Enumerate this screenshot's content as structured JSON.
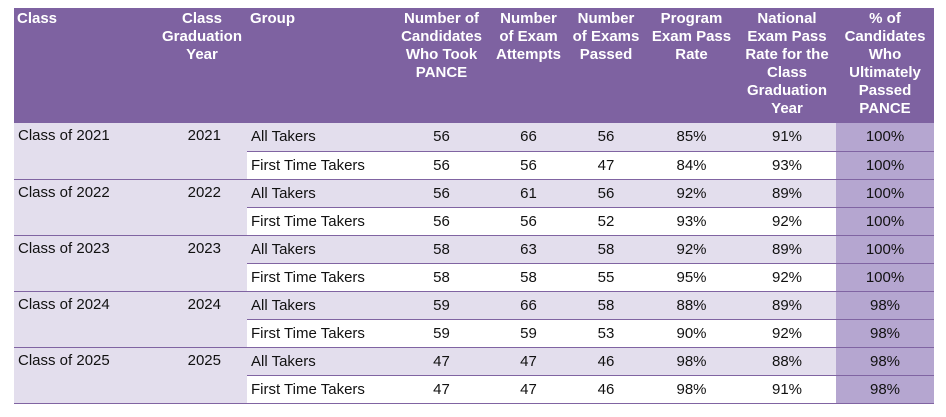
{
  "table": {
    "headers": [
      "Class",
      "Class Graduation Year",
      "Group",
      "Number of Candidates Who Took PANCE",
      "Number of Exam Attempts",
      "Number of Exams Passed",
      "Program Exam Pass Rate",
      "National Exam Pass Rate for the Class Graduation Year",
      "% of Candidates Who Ultimately Passed PANCE"
    ],
    "groups": [
      {
        "class": "Class of 2021",
        "year": "2021",
        "rows": [
          [
            "All Takers",
            "56",
            "66",
            "56",
            "85%",
            "91%",
            "100%"
          ],
          [
            "First Time Takers",
            "56",
            "56",
            "47",
            "84%",
            "93%",
            "100%"
          ]
        ]
      },
      {
        "class": "Class of 2022",
        "year": "2022",
        "rows": [
          [
            "All Takers",
            "56",
            "61",
            "56",
            "92%",
            "89%",
            "100%"
          ],
          [
            "First Time Takers",
            "56",
            "56",
            "52",
            "93%",
            "92%",
            "100%"
          ]
        ]
      },
      {
        "class": "Class of 2023",
        "year": "2023",
        "rows": [
          [
            "All Takers",
            "58",
            "63",
            "58",
            "92%",
            "89%",
            "100%"
          ],
          [
            "First Time Takers",
            "58",
            "58",
            "55",
            "95%",
            "92%",
            "100%"
          ]
        ]
      },
      {
        "class": "Class of 2024",
        "year": "2024",
        "rows": [
          [
            "All Takers",
            "59",
            "66",
            "58",
            "88%",
            "89%",
            "98%"
          ],
          [
            "First Time Takers",
            "59",
            "59",
            "53",
            "90%",
            "92%",
            "98%"
          ]
        ]
      },
      {
        "class": "Class of 2025",
        "year": "2025",
        "rows": [
          [
            "All Takers",
            "47",
            "47",
            "46",
            "98%",
            "88%",
            "98%"
          ],
          [
            "First Time Takers",
            "47",
            "47",
            "46",
            "98%",
            "91%",
            "98%"
          ]
        ]
      }
    ]
  }
}
